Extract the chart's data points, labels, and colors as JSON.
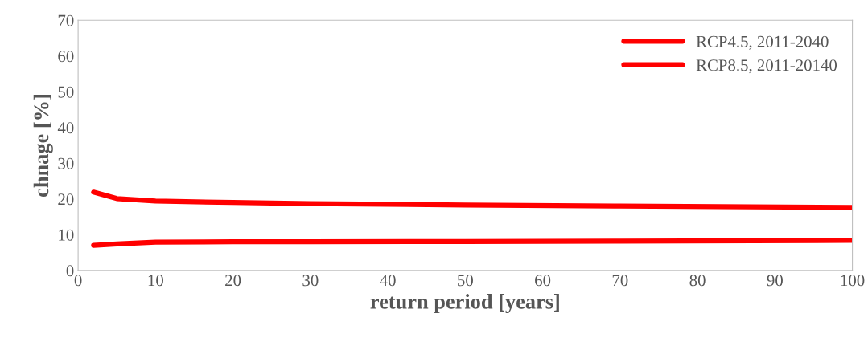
{
  "chart_data": {
    "type": "line",
    "xlabel": "return period [years]",
    "ylabel": "chnage [%]",
    "xlim": [
      0,
      100
    ],
    "xticks": [
      0,
      10,
      20,
      30,
      40,
      50,
      60,
      70,
      80,
      90,
      100
    ],
    "ylim": [
      0,
      70
    ],
    "yticks": [
      0,
      10,
      20,
      30,
      40,
      50,
      60,
      70
    ],
    "grid": false,
    "legend": "top right",
    "marker": "none",
    "line_style": "solid",
    "series": [
      {
        "name": "RCP4.5, 2011-2040",
        "color": "#ff0000",
        "x": [
          2,
          5,
          10,
          20,
          30,
          50,
          70,
          100
        ],
        "values": [
          7.0,
          7.4,
          7.9,
          8.0,
          8.0,
          8.1,
          8.2,
          8.4
        ]
      },
      {
        "name": "RCP8.5, 2011-20140",
        "color": "#ff0000",
        "x": [
          2,
          5,
          10,
          20,
          30,
          50,
          70,
          100
        ],
        "values": [
          21.9,
          20.1,
          19.4,
          19.0,
          18.7,
          18.3,
          18.0,
          17.6
        ]
      }
    ]
  }
}
